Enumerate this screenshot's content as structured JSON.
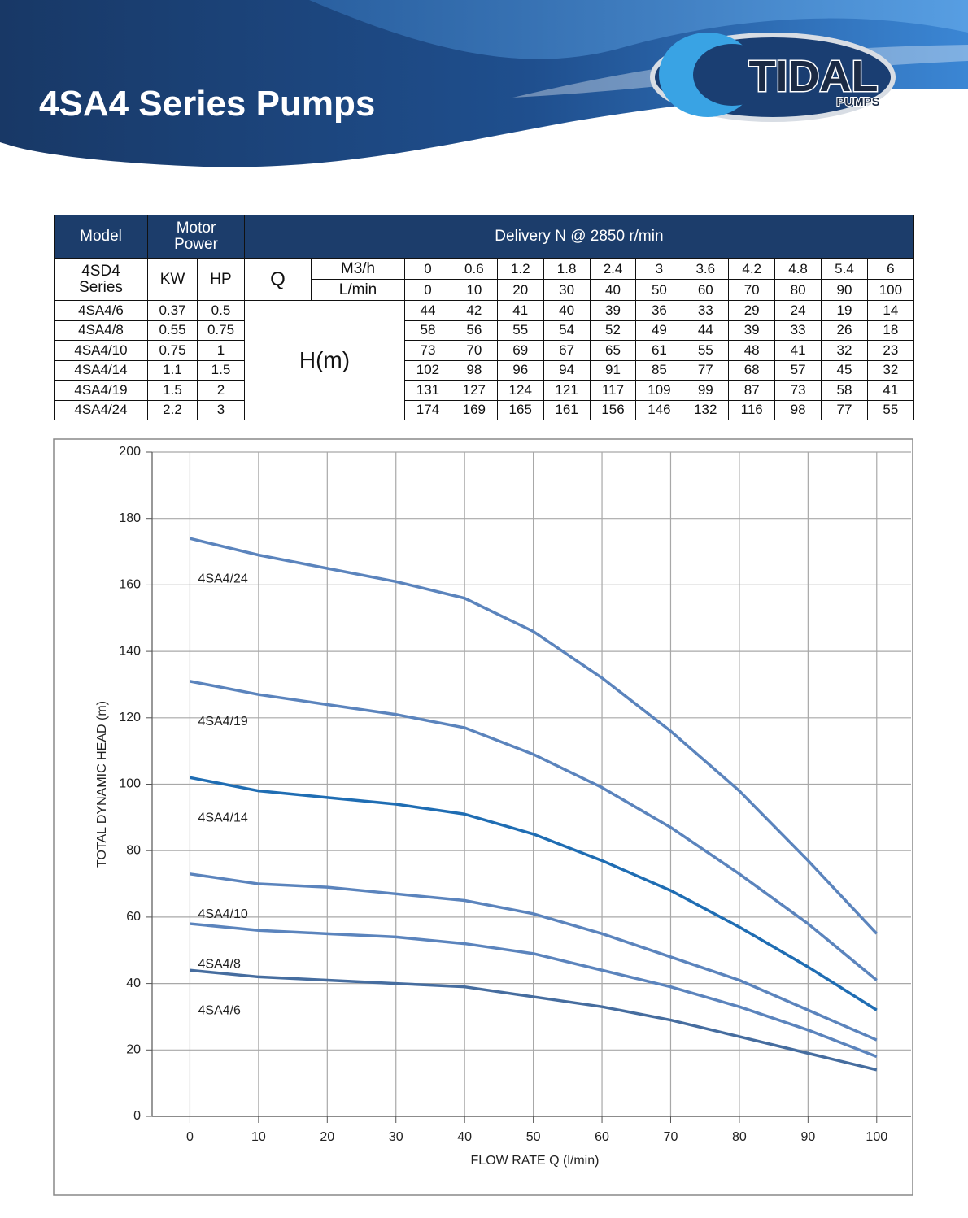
{
  "header": {
    "title": "4SA4 Series Pumps",
    "logo": "TIDAL",
    "logo_sub": "PUMPS"
  },
  "table": {
    "model_label": "Model",
    "motor_power_label": "Motor Power",
    "delivery_label": "Delivery N @ 2850 r/min",
    "series_label": "4SD4 Series",
    "kw_label": "KW",
    "hp_label": "HP",
    "q_label": "Q",
    "head_label": "H(m)",
    "flow": [
      {
        "unit": "M3/h",
        "values": [
          0,
          0.6,
          1.2,
          1.8,
          2.4,
          3,
          3.6,
          4.2,
          4.8,
          5.4,
          6
        ]
      },
      {
        "unit": "L/min",
        "values": [
          0,
          10,
          20,
          30,
          40,
          50,
          60,
          70,
          80,
          90,
          100
        ]
      }
    ],
    "rows": [
      {
        "model": "4SA4/6",
        "kw": 0.37,
        "hp": 0.5,
        "head": [
          44,
          42,
          41,
          40,
          39,
          36,
          33,
          29,
          24,
          19,
          14
        ]
      },
      {
        "model": "4SA4/8",
        "kw": 0.55,
        "hp": 0.75,
        "head": [
          58,
          56,
          55,
          54,
          52,
          49,
          44,
          39,
          33,
          26,
          18
        ]
      },
      {
        "model": "4SA4/10",
        "kw": 0.75,
        "hp": 1,
        "head": [
          73,
          70,
          69,
          67,
          65,
          61,
          55,
          48,
          41,
          32,
          23
        ]
      },
      {
        "model": "4SA4/14",
        "kw": 1.1,
        "hp": 1.5,
        "head": [
          102,
          98,
          96,
          94,
          91,
          85,
          77,
          68,
          57,
          45,
          32
        ]
      },
      {
        "model": "4SA4/19",
        "kw": 1.5,
        "hp": 2,
        "head": [
          131,
          127,
          124,
          121,
          117,
          109,
          99,
          87,
          73,
          58,
          41
        ]
      },
      {
        "model": "4SA4/24",
        "kw": 2.2,
        "hp": 3,
        "head": [
          174,
          169,
          165,
          161,
          156,
          146,
          132,
          116,
          98,
          77,
          55
        ]
      }
    ]
  },
  "chart_data": {
    "type": "line",
    "x_label": "FLOW RATE Q (l/min)",
    "y_label": "TOTAL DYNAMIC HEAD (m)",
    "x": [
      0,
      10,
      20,
      30,
      40,
      50,
      60,
      70,
      80,
      90,
      100
    ],
    "series": [
      {
        "name": "4SA4/24",
        "color": "#5b84bd",
        "values": [
          174,
          169,
          165,
          161,
          156,
          146,
          132,
          116,
          98,
          77,
          55
        ]
      },
      {
        "name": "4SA4/19",
        "color": "#5b84bd",
        "values": [
          131,
          127,
          124,
          121,
          117,
          109,
          99,
          87,
          73,
          58,
          41
        ]
      },
      {
        "name": "4SA4/14",
        "color": "#1f6db3",
        "values": [
          102,
          98,
          96,
          94,
          91,
          85,
          77,
          68,
          57,
          45,
          32
        ]
      },
      {
        "name": "4SA4/10",
        "color": "#5b84bd",
        "values": [
          73,
          70,
          69,
          67,
          65,
          61,
          55,
          48,
          41,
          32,
          23
        ]
      },
      {
        "name": "4SA4/8",
        "color": "#5b84bd",
        "values": [
          58,
          56,
          55,
          54,
          52,
          49,
          44,
          39,
          33,
          26,
          18
        ]
      },
      {
        "name": "4SA4/6",
        "color": "#466d9f",
        "values": [
          44,
          42,
          41,
          40,
          39,
          36,
          33,
          29,
          24,
          19,
          14
        ]
      }
    ],
    "xlim": [
      -5.5,
      105
    ],
    "xticks": [
      0,
      10,
      20,
      30,
      40,
      50,
      60,
      70,
      80,
      90,
      100
    ],
    "ylim": [
      0,
      200
    ],
    "yticks": [
      0,
      20,
      40,
      60,
      80,
      100,
      120,
      140,
      160,
      180,
      200
    ],
    "grid": true
  }
}
